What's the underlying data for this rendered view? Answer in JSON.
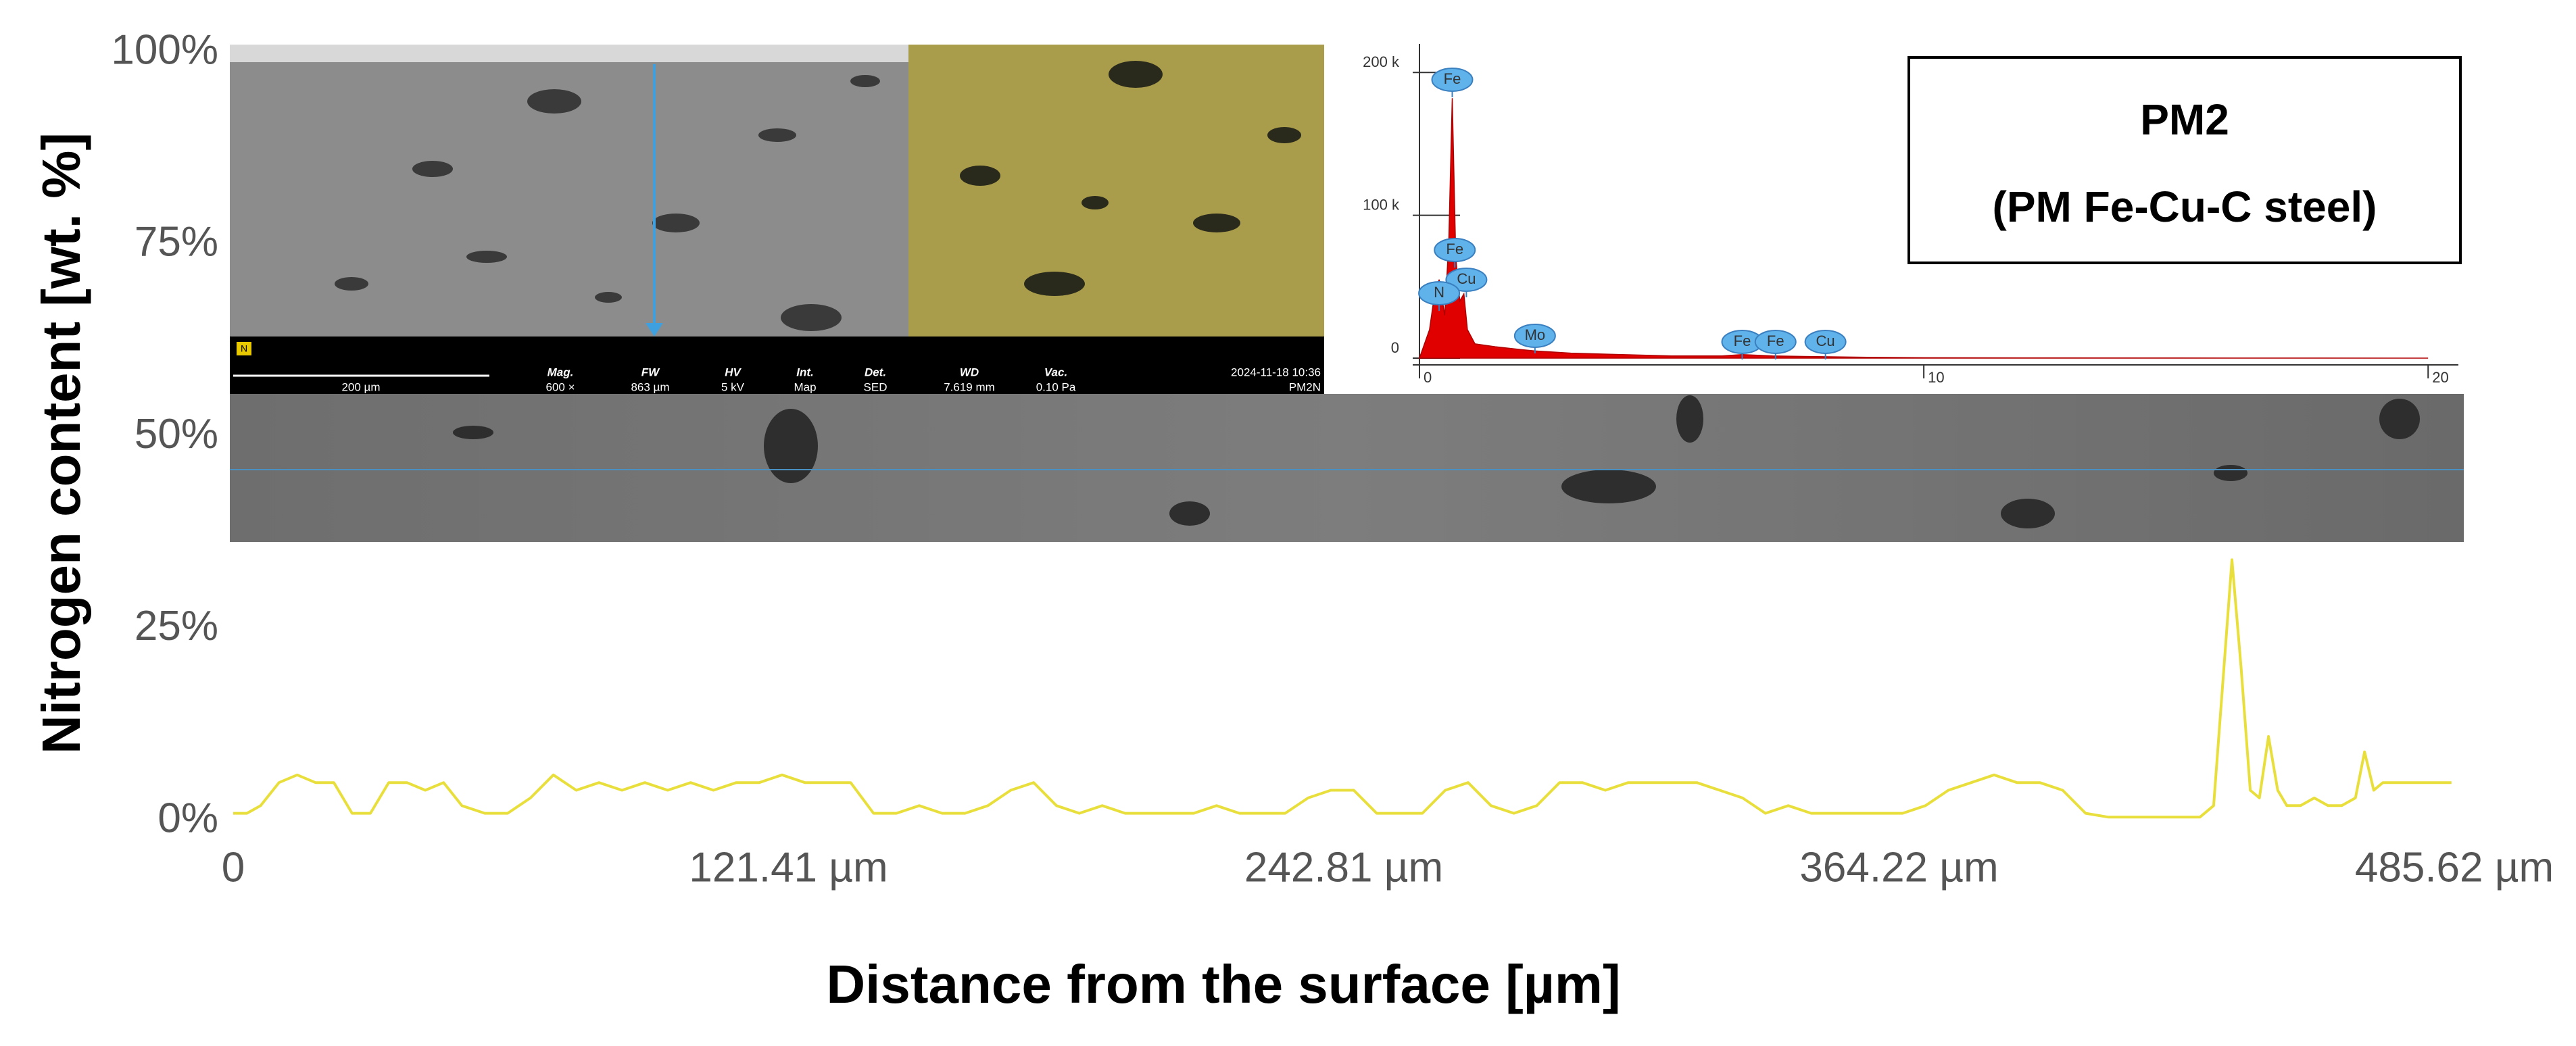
{
  "chart_data": [
    {
      "type": "line",
      "title": "PM2",
      "subtitle": "(PM Fe-Cu-C steel)",
      "x_label": "Distance from the surface [µm]",
      "y_label": "Nitrogen content [wt. %]",
      "color": "#e9df3c",
      "x": [
        0,
        3,
        6,
        10,
        14,
        18,
        22,
        26,
        30,
        34,
        38,
        42,
        46,
        50,
        55,
        60,
        65,
        70,
        75,
        80,
        85,
        90,
        95,
        100,
        105,
        110,
        115,
        120,
        125,
        130,
        135,
        140,
        145,
        150,
        155,
        160,
        165,
        170,
        175,
        180,
        185,
        190,
        195,
        200,
        205,
        210,
        215,
        220,
        225,
        230,
        235,
        240,
        245,
        250,
        255,
        260,
        265,
        270,
        275,
        280,
        285,
        290,
        295,
        300,
        305,
        310,
        315,
        320,
        325,
        330,
        335,
        340,
        345,
        350,
        355,
        360,
        365,
        370,
        375,
        380,
        385,
        390,
        395,
        400,
        405,
        410,
        415,
        420,
        425,
        430,
        433,
        435,
        437,
        439,
        441,
        443,
        445,
        447,
        449,
        452,
        455,
        458,
        461,
        464,
        466,
        468,
        470,
        473,
        476,
        480,
        485
      ],
      "values": [
        1,
        1,
        2,
        5,
        6,
        5,
        5,
        1,
        1,
        5,
        5,
        4,
        5,
        2,
        1,
        1,
        3,
        6,
        4,
        5,
        4,
        5,
        4,
        5,
        4,
        5,
        5,
        6,
        5,
        5,
        5,
        1,
        1,
        2,
        1,
        1,
        2,
        4,
        5,
        2,
        1,
        2,
        1,
        1,
        1,
        1,
        2,
        1,
        1,
        1,
        3,
        4,
        4,
        1,
        1,
        1,
        4,
        5,
        2,
        1,
        2,
        5,
        5,
        4,
        5,
        5,
        5,
        5,
        4,
        3,
        1,
        2,
        1,
        1,
        1,
        1,
        1,
        2,
        4,
        5,
        6,
        5,
        5,
        4,
        1,
        0.5,
        0.5,
        0.5,
        0.5,
        0.5,
        2,
        18,
        34,
        20,
        4,
        3,
        11,
        4,
        2,
        2,
        3,
        2,
        2,
        3,
        9,
        4,
        5,
        5,
        5,
        5,
        5
      ],
      "xlim": [
        0,
        485.62
      ],
      "xticks": [
        0,
        {
          "value": 121.41,
          "label": "121.41 µm"
        },
        {
          "value": 242.81,
          "label": "242.81 µm"
        },
        {
          "value": 364.22,
          "label": "364.22 µm"
        },
        {
          "value": 485.62,
          "label": "485.62 µm"
        }
      ],
      "ylim": [
        0,
        100
      ],
      "yticks": [
        {
          "value": 0,
          "label": "0%"
        },
        {
          "value": 25,
          "label": "25%"
        },
        {
          "value": 50,
          "label": "50%"
        },
        {
          "value": 75,
          "label": "75%"
        },
        {
          "value": 100,
          "label": "100%"
        }
      ]
    },
    {
      "type": "area",
      "color": "#e00000",
      "x": [
        0,
        0.2,
        0.3,
        0.39,
        0.5,
        0.58,
        0.65,
        0.72,
        0.8,
        0.88,
        0.95,
        1.1,
        1.5,
        2,
        2.29,
        3,
        4,
        5,
        6,
        6.4,
        7,
        8,
        9,
        10,
        12,
        15,
        20
      ],
      "values": [
        0,
        20000,
        45000,
        55000,
        30000,
        80000,
        182000,
        70000,
        40000,
        45000,
        20000,
        10000,
        8000,
        6000,
        5000,
        3500,
        2500,
        1500,
        1500,
        2500,
        1500,
        1000,
        500,
        300,
        200,
        100,
        0
      ],
      "xlim": [
        0,
        20.6
      ],
      "xticks": [
        0,
        10,
        20
      ],
      "ylim": [
        0,
        220000
      ],
      "yticks": [
        0,
        {
          "value": 100000,
          "label": "100 k"
        },
        {
          "value": 200000,
          "label": "200 k"
        }
      ],
      "annotations": [
        {
          "text": "Fe",
          "x": 0.65
        },
        {
          "text": "Fe",
          "x": 0.7
        },
        {
          "text": "Cu",
          "x": 0.93
        },
        {
          "text": "N",
          "x": 0.39
        },
        {
          "text": "Mo",
          "x": 2.29
        },
        {
          "text": "Fe",
          "x": 6.4
        },
        {
          "text": "Fe",
          "x": 7.06
        },
        {
          "text": "Cu",
          "x": 8.05
        }
      ]
    }
  ],
  "sem_info": {
    "marker": "N",
    "scale_bar": "200 µm",
    "fields": [
      {
        "label": "Mag.",
        "value": "600 ×"
      },
      {
        "label": "FW",
        "value": "863 µm"
      },
      {
        "label": "HV",
        "value": "5 kV"
      },
      {
        "label": "Int.",
        "value": "Map"
      },
      {
        "label": "Det.",
        "value": "SED"
      },
      {
        "label": "WD",
        "value": "7.619 mm"
      },
      {
        "label": "Vac.",
        "value": "0.10 Pa"
      }
    ],
    "timestamp": "2024-11-18 10:36",
    "sample": "PM2N"
  }
}
